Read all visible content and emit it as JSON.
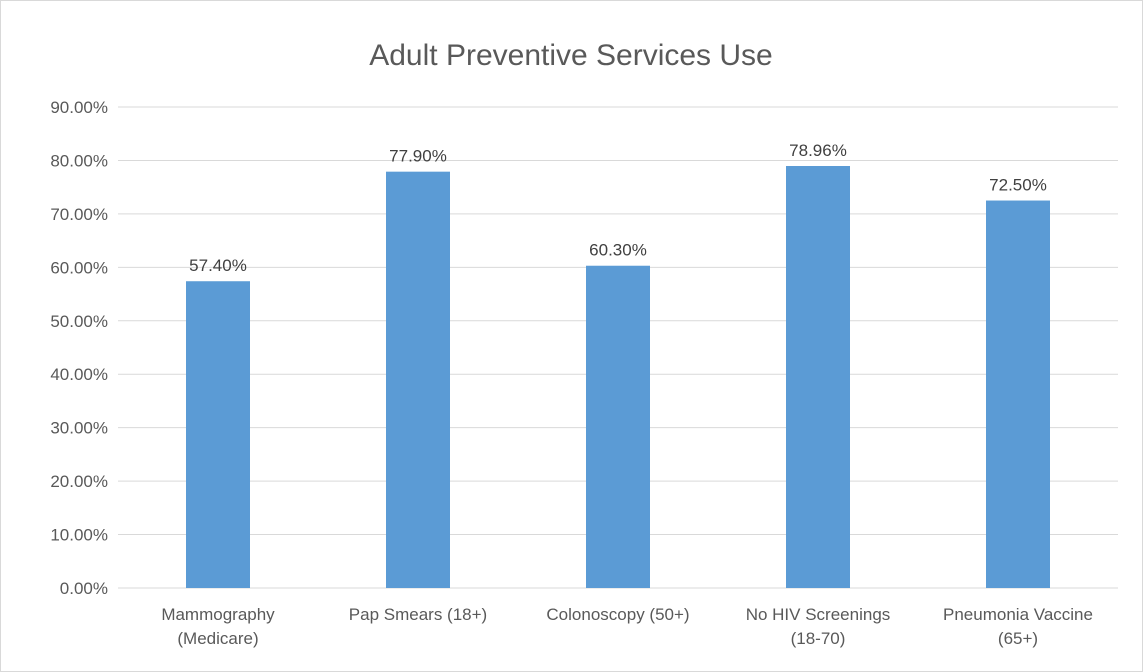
{
  "chart_data": {
    "type": "bar",
    "title": "Adult Preventive Services Use",
    "xlabel": "",
    "ylabel": "",
    "categories": [
      [
        "Mammography",
        "(Medicare)"
      ],
      [
        "Pap Smears (18+)"
      ],
      [
        "Colonoscopy (50+)"
      ],
      [
        "No HIV Screenings",
        "(18-70)"
      ],
      [
        "Pneumonia Vaccine",
        "(65+)"
      ]
    ],
    "values": [
      57.4,
      77.9,
      60.3,
      78.96,
      72.5
    ],
    "data_labels": [
      "57.40%",
      "77.90%",
      "60.30%",
      "78.96%",
      "72.50%"
    ],
    "ylim": [
      0,
      90
    ],
    "y_ticks": [
      0,
      10,
      20,
      30,
      40,
      50,
      60,
      70,
      80,
      90
    ],
    "y_tick_labels": [
      "0.00%",
      "10.00%",
      "20.00%",
      "30.00%",
      "40.00%",
      "50.00%",
      "60.00%",
      "70.00%",
      "80.00%",
      "90.00%"
    ],
    "grid": true,
    "legend": "none",
    "bar_color": "#5b9bd5",
    "grid_color": "#d9d9d9"
  }
}
